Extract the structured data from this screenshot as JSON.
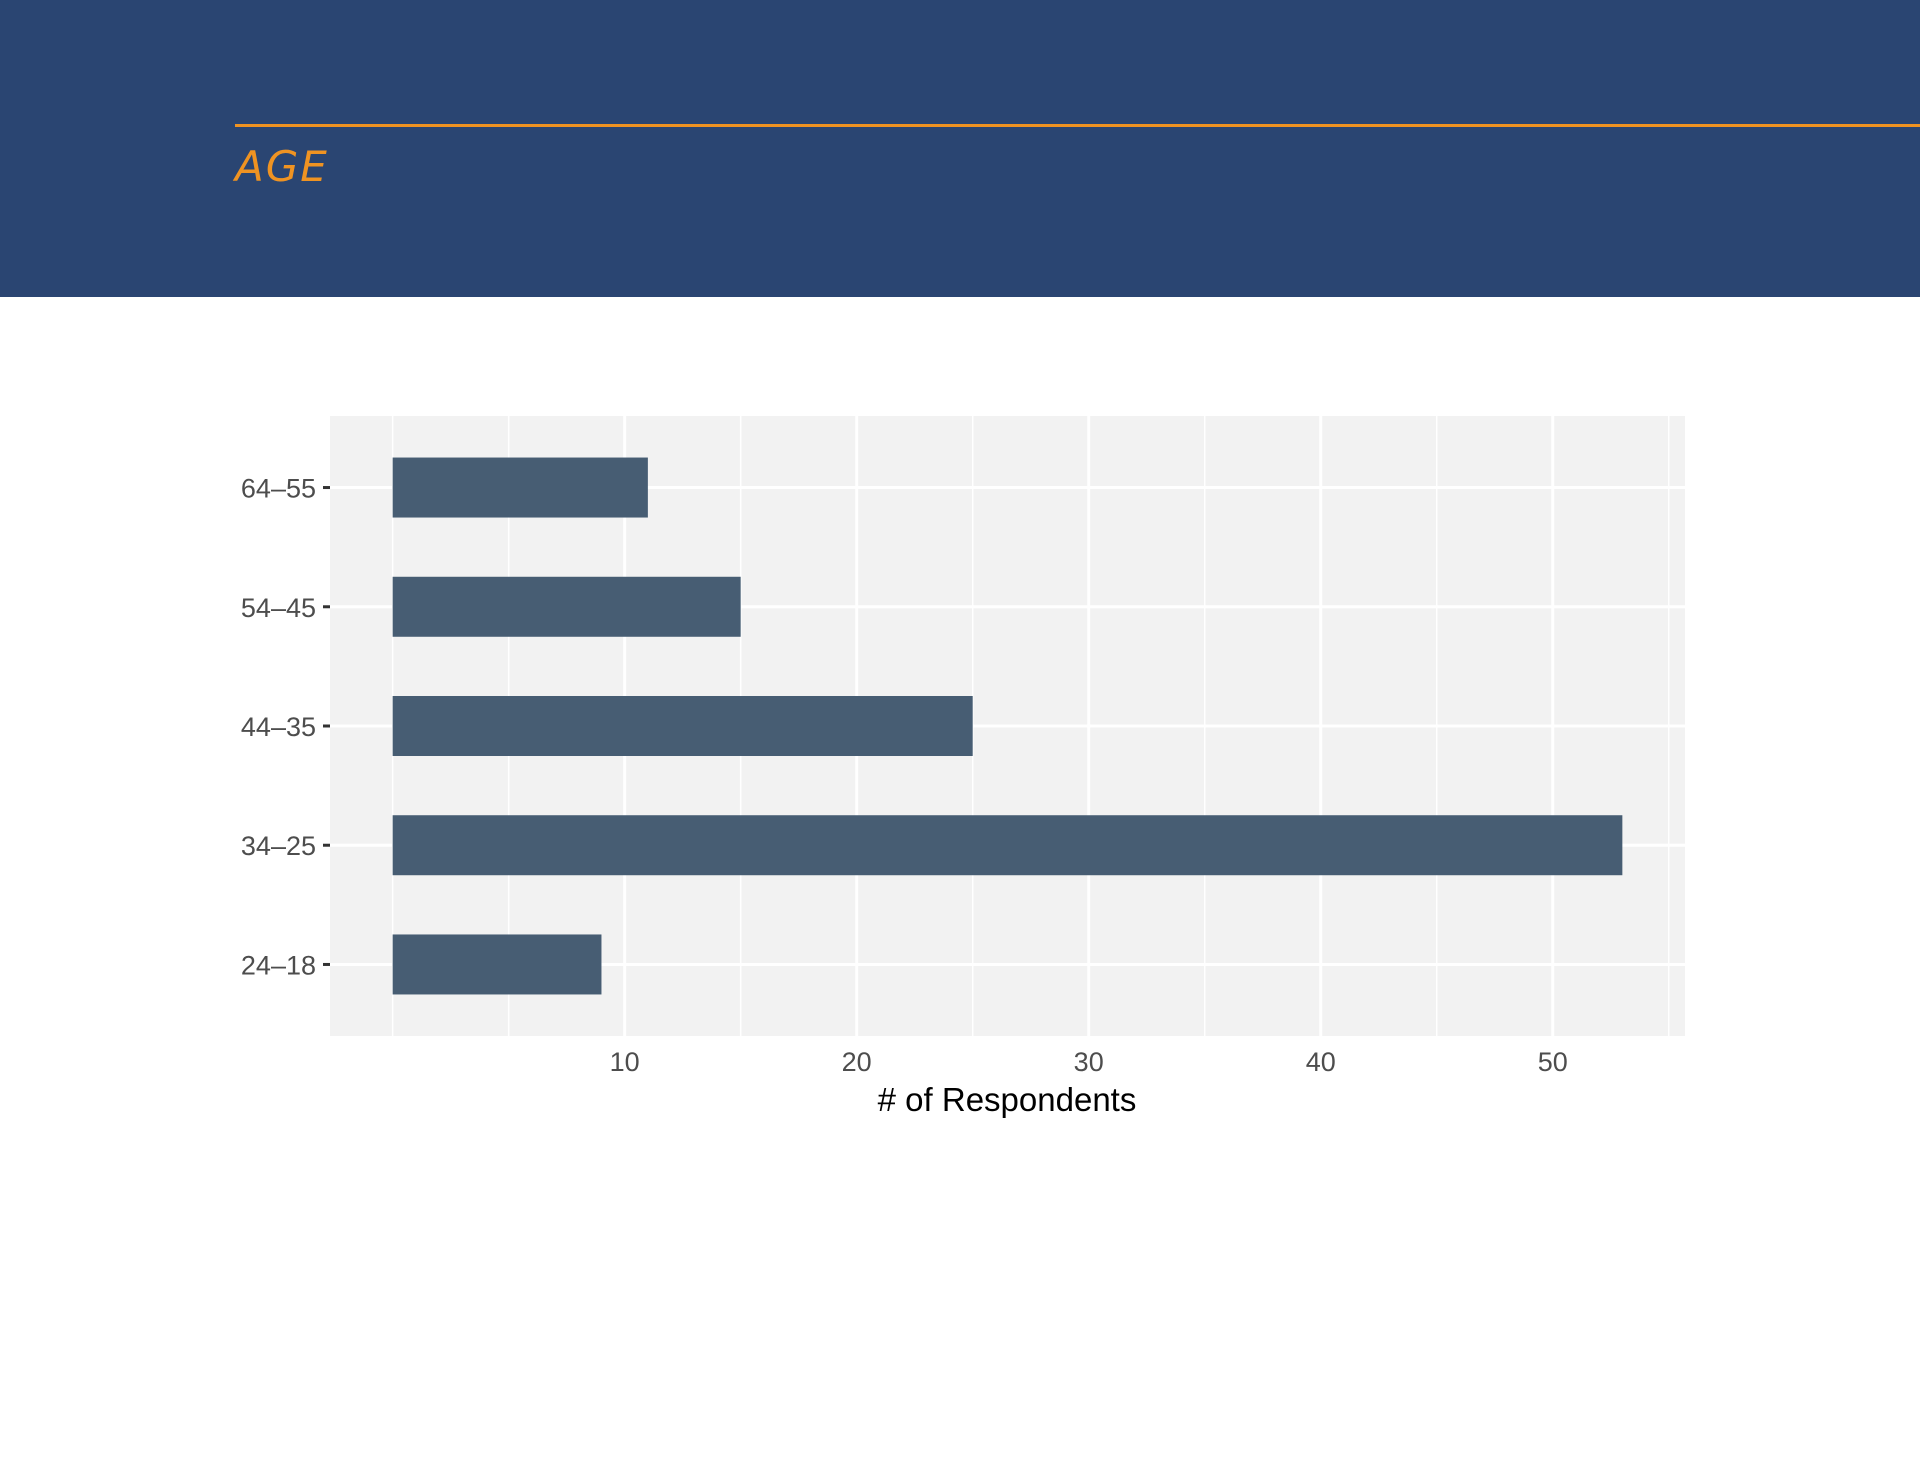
{
  "header": {
    "title": "AGE"
  },
  "colors": {
    "header_bg": "#2a4572",
    "accent": "#ef9322",
    "bar": "#475d73",
    "panel_bg": "#f2f2f2",
    "grid": "#ffffff"
  },
  "chart_data": {
    "type": "bar",
    "orientation": "horizontal",
    "categories": [
      "24–18",
      "34–25",
      "44–35",
      "54–45",
      "64–55"
    ],
    "values": [
      9,
      53,
      25,
      15,
      11
    ],
    "xlabel": "# of Respondents",
    "ylabel": "",
    "xlim": [
      -2.7,
      55.7
    ],
    "xticks": [
      10,
      20,
      30,
      40,
      50
    ],
    "grid": true,
    "legend": "none"
  }
}
